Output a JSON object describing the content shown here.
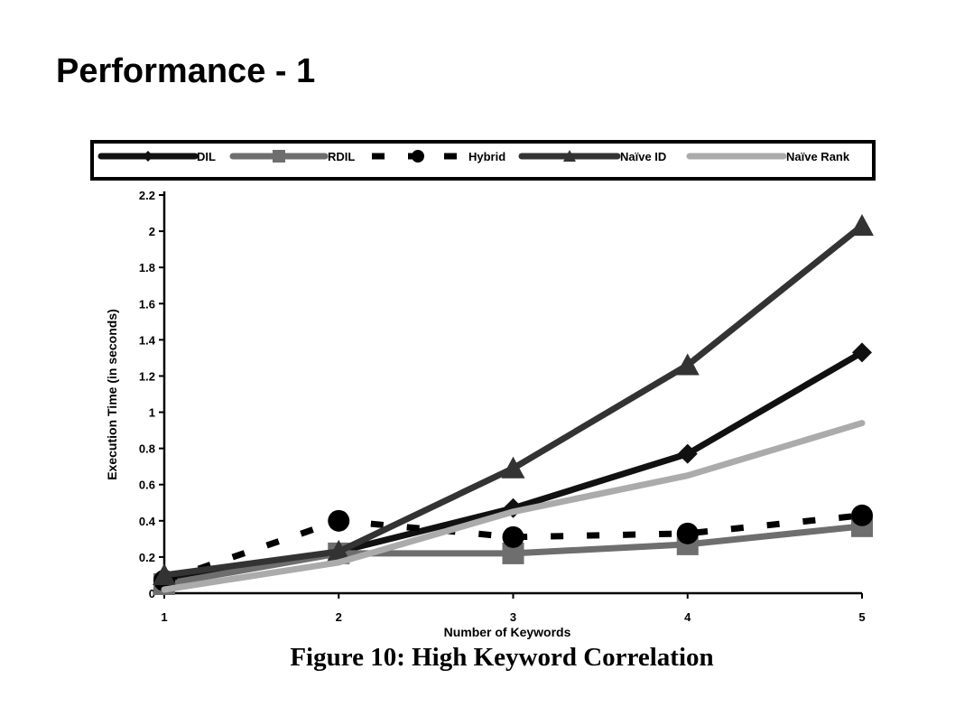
{
  "slide": {
    "title": "Performance - 1"
  },
  "caption": "Figure 10: High Keyword Correlation",
  "chart_data": {
    "type": "line",
    "title": "",
    "xlabel": "Number of Keywords",
    "ylabel": "Execution Time (in seconds)",
    "x": [
      1,
      2,
      3,
      4,
      5
    ],
    "ylim": [
      0,
      2.2
    ],
    "yticks": [
      0,
      0.2,
      0.4,
      0.6,
      0.8,
      1,
      1.2,
      1.4,
      1.6,
      1.8,
      2,
      2.2
    ],
    "ytick_labels": [
      "0",
      "0.2",
      "0.4",
      "0.6",
      "0.8",
      "1",
      "1.2",
      "1.4",
      "1.6",
      "1.8",
      "2",
      "2.2"
    ],
    "grid": false,
    "legend_position": "top",
    "series": [
      {
        "name": "DIL",
        "values": [
          0.08,
          0.23,
          0.47,
          0.77,
          1.33
        ],
        "color": "#111111",
        "marker": "diamond",
        "dash": "solid"
      },
      {
        "name": "RDIL",
        "values": [
          0.05,
          0.22,
          0.22,
          0.27,
          0.37
        ],
        "color": "#6e6e6e",
        "marker": "square",
        "dash": "solid"
      },
      {
        "name": "Hybrid",
        "values": [
          0.07,
          0.4,
          0.31,
          0.33,
          0.43
        ],
        "color": "#000000",
        "marker": "circle",
        "dash": "dashed"
      },
      {
        "name": "Naïve ID",
        "values": [
          0.1,
          0.23,
          0.69,
          1.26,
          2.03
        ],
        "color": "#333333",
        "marker": "triangle",
        "dash": "solid"
      },
      {
        "name": "Naïve Rank",
        "values": [
          0.02,
          0.17,
          0.45,
          0.65,
          0.94
        ],
        "color": "#ababab",
        "marker": "none",
        "dash": "solid"
      }
    ]
  }
}
